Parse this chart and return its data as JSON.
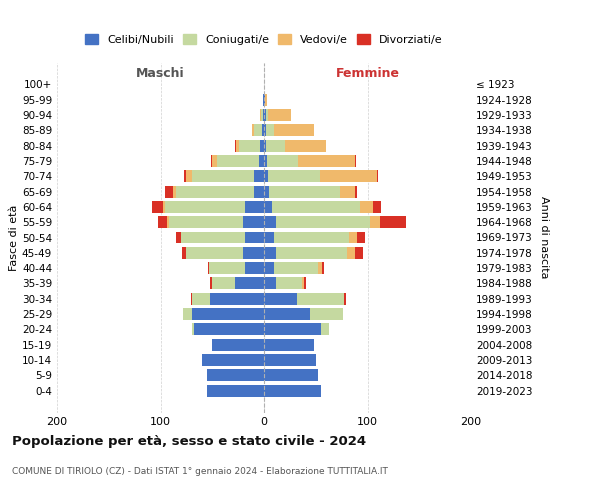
{
  "age_groups": [
    "100+",
    "95-99",
    "90-94",
    "85-89",
    "80-84",
    "75-79",
    "70-74",
    "65-69",
    "60-64",
    "55-59",
    "50-54",
    "45-49",
    "40-44",
    "35-39",
    "30-34",
    "25-29",
    "20-24",
    "15-19",
    "10-14",
    "5-9",
    "0-4"
  ],
  "birth_years": [
    "≤ 1923",
    "1924-1928",
    "1929-1933",
    "1934-1938",
    "1939-1943",
    "1944-1948",
    "1949-1953",
    "1954-1958",
    "1959-1963",
    "1964-1968",
    "1969-1973",
    "1974-1978",
    "1979-1983",
    "1984-1988",
    "1989-1993",
    "1994-1998",
    "1999-2003",
    "2004-2008",
    "2009-2013",
    "2014-2018",
    "2019-2023"
  ],
  "maschi": {
    "celibi": [
      0,
      1,
      1,
      2,
      4,
      5,
      10,
      10,
      18,
      20,
      18,
      20,
      18,
      28,
      52,
      70,
      68,
      50,
      60,
      55,
      55
    ],
    "coniugati": [
      0,
      0,
      2,
      8,
      20,
      40,
      60,
      75,
      78,
      72,
      62,
      55,
      35,
      22,
      18,
      8,
      2,
      0,
      0,
      0,
      0
    ],
    "vedovi": [
      0,
      0,
      1,
      2,
      3,
      5,
      5,
      3,
      2,
      2,
      0,
      0,
      0,
      0,
      0,
      0,
      0,
      0,
      0,
      0,
      0
    ],
    "divorziati": [
      0,
      0,
      0,
      0,
      1,
      1,
      2,
      8,
      10,
      8,
      5,
      4,
      1,
      2,
      1,
      0,
      0,
      0,
      0,
      0,
      0
    ]
  },
  "femmine": {
    "nubili": [
      0,
      1,
      2,
      2,
      2,
      3,
      4,
      5,
      8,
      12,
      10,
      12,
      10,
      12,
      32,
      44,
      55,
      48,
      50,
      52,
      55
    ],
    "coniugate": [
      0,
      0,
      2,
      8,
      18,
      30,
      50,
      68,
      85,
      90,
      72,
      68,
      42,
      25,
      45,
      32,
      8,
      0,
      0,
      0,
      0
    ],
    "vedove": [
      0,
      2,
      22,
      38,
      40,
      55,
      55,
      15,
      12,
      10,
      8,
      8,
      4,
      2,
      0,
      0,
      0,
      0,
      0,
      0,
      0
    ],
    "divorziate": [
      0,
      0,
      0,
      0,
      0,
      1,
      1,
      2,
      8,
      25,
      8,
      8,
      2,
      2,
      2,
      0,
      0,
      0,
      0,
      0,
      0
    ]
  },
  "colors": {
    "celibi_nubili": "#4472C4",
    "coniugati": "#c5d9a0",
    "vedovi": "#f0b96b",
    "divorziati": "#d93025"
  },
  "title": "Popolazione per età, sesso e stato civile - 2024",
  "subtitle": "COMUNE DI TIRIOLO (CZ) - Dati ISTAT 1° gennaio 2024 - Elaborazione TUTTITALIA.IT",
  "xlabel_left": "Maschi",
  "xlabel_right": "Femmine",
  "ylabel_left": "Fasce di età",
  "ylabel_right": "Anni di nascita",
  "xlim": 200,
  "legend_labels": [
    "Celibi/Nubili",
    "Coniugati/e",
    "Vedovi/e",
    "Divorziati/e"
  ],
  "background_color": "#ffffff",
  "grid_color": "#cccccc"
}
